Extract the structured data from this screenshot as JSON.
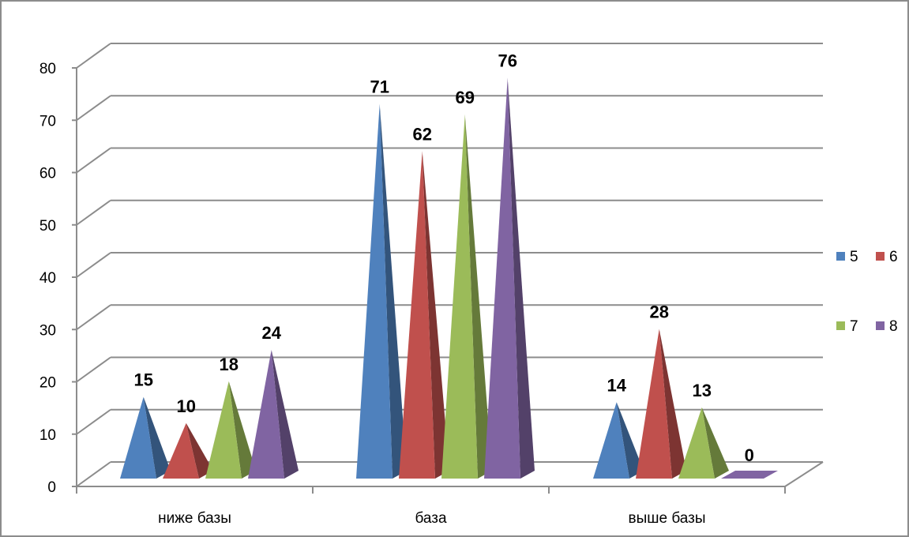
{
  "chart_data": {
    "type": "bar",
    "style": "3d-pyramid",
    "categories": [
      "ниже базы",
      "база",
      "выше базы"
    ],
    "series": [
      {
        "name": "5",
        "color": "#4f81bd",
        "values": [
          15,
          71,
          14
        ]
      },
      {
        "name": "6",
        "color": "#c0504d",
        "values": [
          10,
          62,
          28
        ]
      },
      {
        "name": "7",
        "color": "#9bbb59",
        "values": [
          18,
          69,
          13
        ]
      },
      {
        "name": "8",
        "color": "#8064a2",
        "values": [
          24,
          76,
          0
        ]
      }
    ],
    "ylim": [
      0,
      80
    ],
    "yticks": [
      "0",
      "10",
      "20",
      "30",
      "40",
      "50",
      "60",
      "70",
      "80"
    ],
    "grid": true,
    "legend_position": "right",
    "data_labels": true
  }
}
